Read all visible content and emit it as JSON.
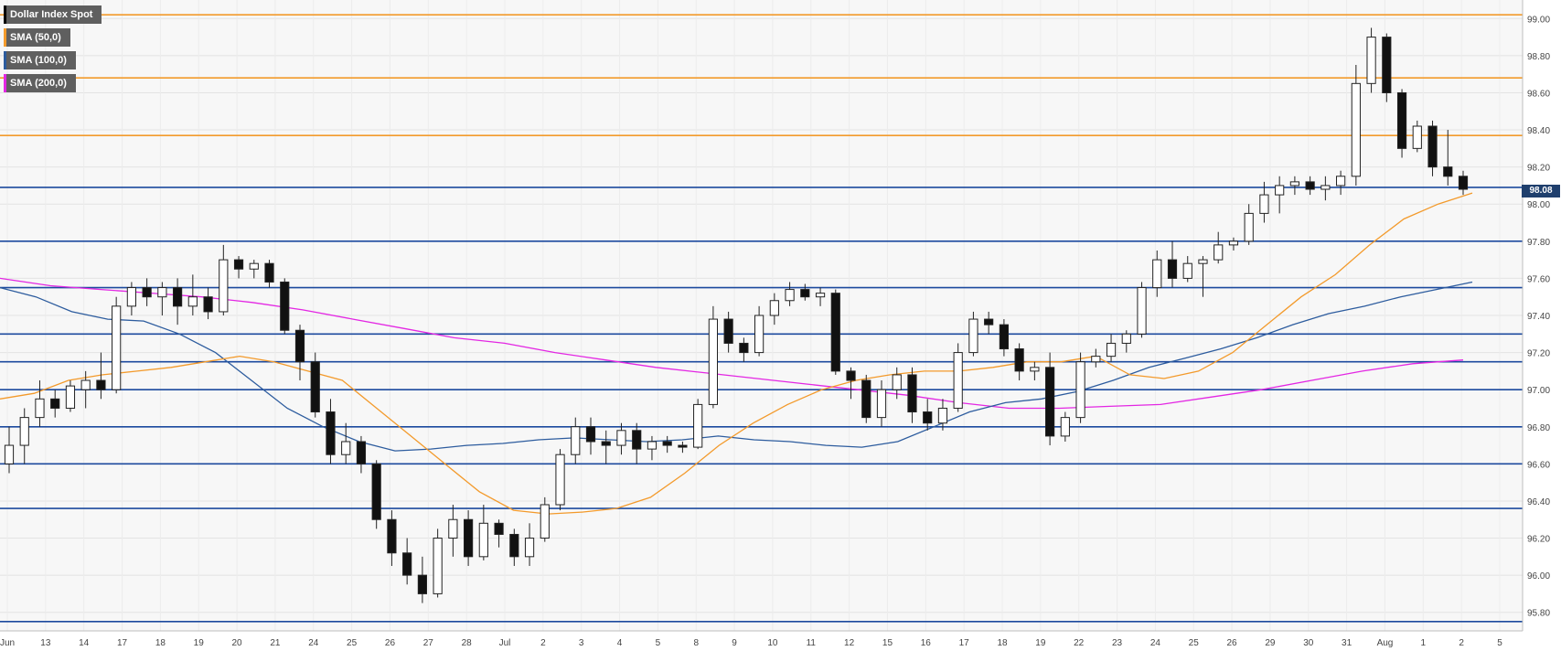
{
  "legend": {
    "main": {
      "label": "Dollar Index Spot",
      "color": "#000000"
    },
    "sma50": {
      "label": "SMA (50,0)",
      "color": "#f39a2b"
    },
    "sma100": {
      "label": "SMA (100,0)",
      "color": "#2d5c9e"
    },
    "sma200": {
      "label": "SMA (200,0)",
      "color": "#e327e3"
    }
  },
  "last_price": "98.08",
  "colors": {
    "resistance": "#f39a2b",
    "support": "#1c4a9e",
    "background": "#f7f7f7",
    "grid": "#e3e3e3"
  },
  "chart_data": {
    "type": "candlestick",
    "ylim": [
      95.7,
      99.1
    ],
    "y_ticks": [
      "99.00",
      "98.80",
      "98.60",
      "98.40",
      "98.20",
      "98.00",
      "97.80",
      "97.60",
      "97.40",
      "97.20",
      "97.00",
      "96.80",
      "96.60",
      "96.40",
      "96.20",
      "96.00",
      "95.80"
    ],
    "x_ticks": [
      "Jun",
      "13",
      "14",
      "17",
      "18",
      "19",
      "20",
      "21",
      "24",
      "25",
      "26",
      "27",
      "28",
      "Jul",
      "2",
      "3",
      "4",
      "5",
      "8",
      "9",
      "10",
      "11",
      "12",
      "15",
      "16",
      "17",
      "18",
      "19",
      "22",
      "23",
      "24",
      "25",
      "26",
      "29",
      "30",
      "31",
      "Aug",
      "1",
      "2",
      "5"
    ],
    "horizontal_lines": {
      "resistance": [
        99.02,
        98.68,
        98.37
      ],
      "support": [
        98.09,
        97.8,
        97.55,
        97.3,
        97.15,
        97.0,
        96.8,
        96.6,
        96.36,
        95.75
      ]
    },
    "candles": [
      {
        "o": 96.6,
        "h": 96.8,
        "l": 96.55,
        "c": 96.7
      },
      {
        "o": 96.7,
        "h": 96.9,
        "l": 96.6,
        "c": 96.85
      },
      {
        "o": 96.85,
        "h": 97.05,
        "l": 96.8,
        "c": 96.95
      },
      {
        "o": 96.95,
        "h": 97.0,
        "l": 96.85,
        "c": 96.9
      },
      {
        "o": 96.9,
        "h": 97.05,
        "l": 96.88,
        "c": 97.02
      },
      {
        "o": 97.0,
        "h": 97.1,
        "l": 96.9,
        "c": 97.05
      },
      {
        "o": 97.05,
        "h": 97.2,
        "l": 96.95,
        "c": 97.0
      },
      {
        "o": 97.0,
        "h": 97.5,
        "l": 96.98,
        "c": 97.45
      },
      {
        "o": 97.45,
        "h": 97.58,
        "l": 97.4,
        "c": 97.55
      },
      {
        "o": 97.55,
        "h": 97.6,
        "l": 97.45,
        "c": 97.5
      },
      {
        "o": 97.5,
        "h": 97.58,
        "l": 97.4,
        "c": 97.55
      },
      {
        "o": 97.55,
        "h": 97.6,
        "l": 97.35,
        "c": 97.45
      },
      {
        "o": 97.45,
        "h": 97.62,
        "l": 97.4,
        "c": 97.5
      },
      {
        "o": 97.5,
        "h": 97.55,
        "l": 97.38,
        "c": 97.42
      },
      {
        "o": 97.42,
        "h": 97.78,
        "l": 97.4,
        "c": 97.7
      },
      {
        "o": 97.7,
        "h": 97.72,
        "l": 97.6,
        "c": 97.65
      },
      {
        "o": 97.65,
        "h": 97.7,
        "l": 97.6,
        "c": 97.68
      },
      {
        "o": 97.68,
        "h": 97.7,
        "l": 97.55,
        "c": 97.58
      },
      {
        "o": 97.58,
        "h": 97.6,
        "l": 97.3,
        "c": 97.32
      },
      {
        "o": 97.32,
        "h": 97.35,
        "l": 97.05,
        "c": 97.15
      },
      {
        "o": 97.15,
        "h": 97.2,
        "l": 96.85,
        "c": 96.88
      },
      {
        "o": 96.88,
        "h": 96.95,
        "l": 96.6,
        "c": 96.65
      },
      {
        "o": 96.65,
        "h": 96.82,
        "l": 96.6,
        "c": 96.72
      },
      {
        "o": 96.72,
        "h": 96.75,
        "l": 96.55,
        "c": 96.6
      },
      {
        "o": 96.6,
        "h": 96.62,
        "l": 96.25,
        "c": 96.3
      },
      {
        "o": 96.3,
        "h": 96.35,
        "l": 96.05,
        "c": 96.12
      },
      {
        "o": 96.12,
        "h": 96.2,
        "l": 95.95,
        "c": 96.0
      },
      {
        "o": 96.0,
        "h": 96.1,
        "l": 95.85,
        "c": 95.9
      },
      {
        "o": 95.9,
        "h": 96.25,
        "l": 95.88,
        "c": 96.2
      },
      {
        "o": 96.2,
        "h": 96.38,
        "l": 96.1,
        "c": 96.3
      },
      {
        "o": 96.3,
        "h": 96.35,
        "l": 96.05,
        "c": 96.1
      },
      {
        "o": 96.1,
        "h": 96.38,
        "l": 96.08,
        "c": 96.28
      },
      {
        "o": 96.28,
        "h": 96.3,
        "l": 96.15,
        "c": 96.22
      },
      {
        "o": 96.22,
        "h": 96.25,
        "l": 96.05,
        "c": 96.1
      },
      {
        "o": 96.1,
        "h": 96.28,
        "l": 96.05,
        "c": 96.2
      },
      {
        "o": 96.2,
        "h": 96.42,
        "l": 96.18,
        "c": 96.38
      },
      {
        "o": 96.38,
        "h": 96.68,
        "l": 96.35,
        "c": 96.65
      },
      {
        "o": 96.65,
        "h": 96.85,
        "l": 96.6,
        "c": 96.8
      },
      {
        "o": 96.8,
        "h": 96.85,
        "l": 96.65,
        "c": 96.72
      },
      {
        "o": 96.72,
        "h": 96.78,
        "l": 96.6,
        "c": 96.7
      },
      {
        "o": 96.7,
        "h": 96.82,
        "l": 96.65,
        "c": 96.78
      },
      {
        "o": 96.78,
        "h": 96.82,
        "l": 96.6,
        "c": 96.68
      },
      {
        "o": 96.68,
        "h": 96.75,
        "l": 96.62,
        "c": 96.72
      },
      {
        "o": 96.72,
        "h": 96.75,
        "l": 96.66,
        "c": 96.7
      },
      {
        "o": 96.7,
        "h": 96.72,
        "l": 96.66,
        "c": 96.69
      },
      {
        "o": 96.69,
        "h": 96.95,
        "l": 96.68,
        "c": 96.92
      },
      {
        "o": 96.92,
        "h": 97.45,
        "l": 96.9,
        "c": 97.38
      },
      {
        "o": 97.38,
        "h": 97.42,
        "l": 97.2,
        "c": 97.25
      },
      {
        "o": 97.25,
        "h": 97.28,
        "l": 97.15,
        "c": 97.2
      },
      {
        "o": 97.2,
        "h": 97.45,
        "l": 97.18,
        "c": 97.4
      },
      {
        "o": 97.4,
        "h": 97.52,
        "l": 97.35,
        "c": 97.48
      },
      {
        "o": 97.48,
        "h": 97.58,
        "l": 97.45,
        "c": 97.54
      },
      {
        "o": 97.54,
        "h": 97.57,
        "l": 97.48,
        "c": 97.5
      },
      {
        "o": 97.5,
        "h": 97.55,
        "l": 97.45,
        "c": 97.52
      },
      {
        "o": 97.52,
        "h": 97.54,
        "l": 97.08,
        "c": 97.1
      },
      {
        "o": 97.1,
        "h": 97.12,
        "l": 96.95,
        "c": 97.05
      },
      {
        "o": 97.05,
        "h": 97.08,
        "l": 96.82,
        "c": 96.85
      },
      {
        "o": 96.85,
        "h": 97.05,
        "l": 96.8,
        "c": 97.0
      },
      {
        "o": 97.0,
        "h": 97.12,
        "l": 96.95,
        "c": 97.08
      },
      {
        "o": 97.08,
        "h": 97.12,
        "l": 96.82,
        "c": 96.88
      },
      {
        "o": 96.88,
        "h": 96.95,
        "l": 96.78,
        "c": 96.82
      },
      {
        "o": 96.82,
        "h": 96.95,
        "l": 96.78,
        "c": 96.9
      },
      {
        "o": 96.9,
        "h": 97.25,
        "l": 96.88,
        "c": 97.2
      },
      {
        "o": 97.2,
        "h": 97.42,
        "l": 97.18,
        "c": 97.38
      },
      {
        "o": 97.38,
        "h": 97.42,
        "l": 97.3,
        "c": 97.35
      },
      {
        "o": 97.35,
        "h": 97.38,
        "l": 97.18,
        "c": 97.22
      },
      {
        "o": 97.22,
        "h": 97.25,
        "l": 97.05,
        "c": 97.1
      },
      {
        "o": 97.1,
        "h": 97.15,
        "l": 97.05,
        "c": 97.12
      },
      {
        "o": 97.12,
        "h": 97.2,
        "l": 96.7,
        "c": 96.75
      },
      {
        "o": 96.75,
        "h": 96.88,
        "l": 96.72,
        "c": 96.85
      },
      {
        "o": 96.85,
        "h": 97.2,
        "l": 96.82,
        "c": 97.15
      },
      {
        "o": 97.15,
        "h": 97.22,
        "l": 97.12,
        "c": 97.18
      },
      {
        "o": 97.18,
        "h": 97.3,
        "l": 97.15,
        "c": 97.25
      },
      {
        "o": 97.25,
        "h": 97.32,
        "l": 97.2,
        "c": 97.3
      },
      {
        "o": 97.3,
        "h": 97.58,
        "l": 97.28,
        "c": 97.55
      },
      {
        "o": 97.55,
        "h": 97.75,
        "l": 97.5,
        "c": 97.7
      },
      {
        "o": 97.7,
        "h": 97.8,
        "l": 97.55,
        "c": 97.6
      },
      {
        "o": 97.6,
        "h": 97.72,
        "l": 97.58,
        "c": 97.68
      },
      {
        "o": 97.68,
        "h": 97.72,
        "l": 97.5,
        "c": 97.7
      },
      {
        "o": 97.7,
        "h": 97.85,
        "l": 97.68,
        "c": 97.78
      },
      {
        "o": 97.78,
        "h": 97.82,
        "l": 97.75,
        "c": 97.8
      },
      {
        "o": 97.8,
        "h": 98.0,
        "l": 97.78,
        "c": 97.95
      },
      {
        "o": 97.95,
        "h": 98.12,
        "l": 97.9,
        "c": 98.05
      },
      {
        "o": 98.05,
        "h": 98.15,
        "l": 97.95,
        "c": 98.1
      },
      {
        "o": 98.1,
        "h": 98.15,
        "l": 98.05,
        "c": 98.12
      },
      {
        "o": 98.12,
        "h": 98.15,
        "l": 98.05,
        "c": 98.08
      },
      {
        "o": 98.08,
        "h": 98.15,
        "l": 98.02,
        "c": 98.1
      },
      {
        "o": 98.1,
        "h": 98.18,
        "l": 98.05,
        "c": 98.15
      },
      {
        "o": 98.15,
        "h": 98.75,
        "l": 98.1,
        "c": 98.65
      },
      {
        "o": 98.65,
        "h": 98.95,
        "l": 98.6,
        "c": 98.9
      },
      {
        "o": 98.9,
        "h": 98.92,
        "l": 98.55,
        "c": 98.6
      },
      {
        "o": 98.6,
        "h": 98.62,
        "l": 98.25,
        "c": 98.3
      },
      {
        "o": 98.3,
        "h": 98.45,
        "l": 98.28,
        "c": 98.42
      },
      {
        "o": 98.42,
        "h": 98.45,
        "l": 98.15,
        "c": 98.2
      },
      {
        "o": 98.2,
        "h": 98.4,
        "l": 98.1,
        "c": 98.15
      },
      {
        "o": 98.15,
        "h": 98.18,
        "l": 98.05,
        "c": 98.08
      }
    ],
    "sma50": [
      96.95,
      96.98,
      97.05,
      97.08,
      97.1,
      97.12,
      97.15,
      97.18,
      97.15,
      97.1,
      97.05,
      96.9,
      96.75,
      96.6,
      96.45,
      96.35,
      96.33,
      96.34,
      96.36,
      96.42,
      96.55,
      96.7,
      96.82,
      96.92,
      97.0,
      97.05,
      97.08,
      97.1,
      97.1,
      97.12,
      97.15,
      97.15,
      97.18,
      97.08,
      97.06,
      97.1,
      97.2,
      97.35,
      97.5,
      97.62,
      97.78,
      97.92,
      98.0,
      98.06
    ],
    "sma100": [
      97.55,
      97.5,
      97.42,
      97.38,
      97.37,
      97.3,
      97.2,
      97.05,
      96.9,
      96.8,
      96.72,
      96.67,
      96.68,
      96.7,
      96.71,
      96.73,
      96.74,
      96.73,
      96.72,
      96.73,
      96.75,
      96.73,
      96.72,
      96.7,
      96.69,
      96.72,
      96.8,
      96.88,
      96.93,
      96.95,
      96.99,
      97.05,
      97.12,
      97.17,
      97.22,
      97.28,
      97.35,
      97.41,
      97.45,
      97.5,
      97.54,
      97.58
    ],
    "sma200": [
      97.6,
      97.56,
      97.54,
      97.52,
      97.5,
      97.47,
      97.43,
      97.38,
      97.33,
      97.28,
      97.25,
      97.2,
      97.16,
      97.12,
      97.09,
      97.06,
      97.03,
      97.0,
      96.97,
      96.93,
      96.9,
      96.9,
      96.91,
      96.92,
      96.96,
      97.0,
      97.05,
      97.1,
      97.14,
      97.16
    ]
  }
}
